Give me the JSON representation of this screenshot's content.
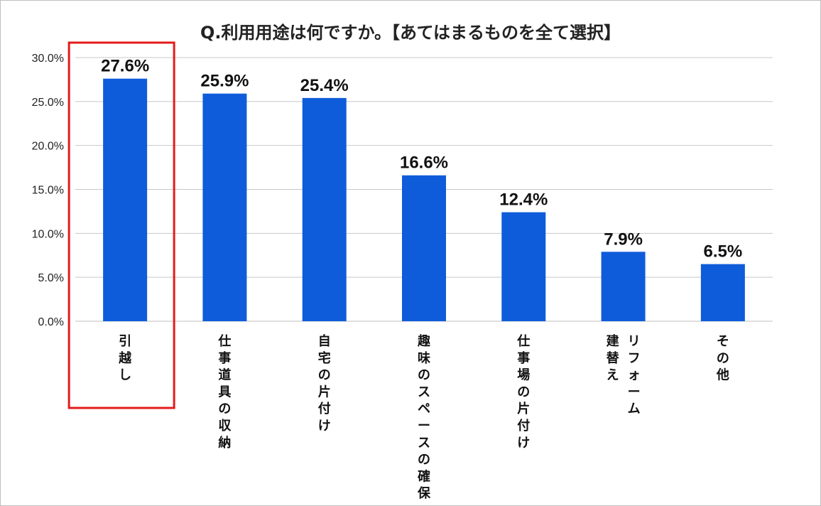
{
  "chart_data": {
    "type": "bar",
    "title": "Q.利用用途は何ですか。【あてはまるものを全て選択】",
    "xlabel": "",
    "ylabel": "",
    "categories": [
      "引越し",
      "仕事道具の収納",
      "自宅の片付け",
      "趣味のスペースの確保",
      "仕事場の片付け",
      "リフォーム\n建替え",
      "その他"
    ],
    "values": [
      27.6,
      25.9,
      25.4,
      16.6,
      12.4,
      7.9,
      6.5
    ],
    "data_labels": [
      "27.6%",
      "25.9%",
      "25.4%",
      "16.6%",
      "12.4%",
      "7.9%",
      "6.5%"
    ],
    "y_ticks": [
      0,
      5,
      10,
      15,
      20,
      25,
      30
    ],
    "y_tick_labels": [
      "0.0%",
      "5.0%",
      "10.0%",
      "15.0%",
      "20.0%",
      "25.0%",
      "30.0%"
    ],
    "ylim": [
      0,
      30
    ],
    "grid": true,
    "highlighted_category": "引越し",
    "colors": {
      "bar": "#0f5cda",
      "grid": "#c8c8c8",
      "axis": "#bfbfbf",
      "highlight_box": "#e31b1b"
    }
  }
}
